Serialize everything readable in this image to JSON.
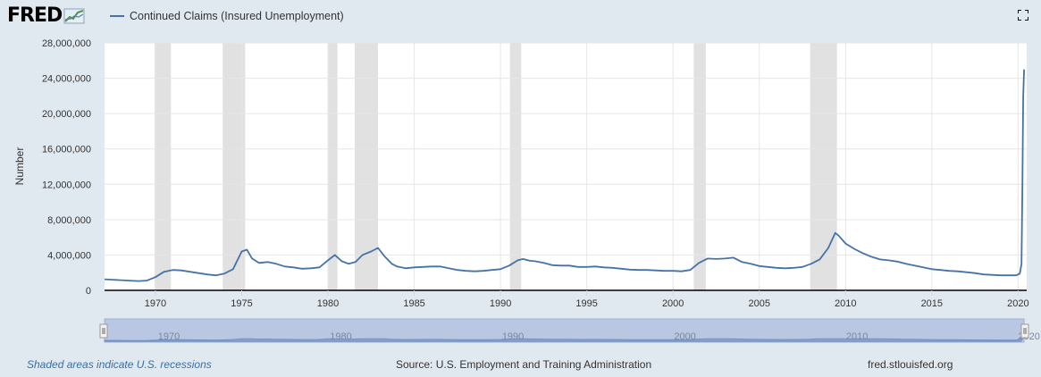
{
  "header": {
    "logo_text": "FRED",
    "legend_label": "Continued Claims (Insured Unemployment)",
    "series_color": "#4572a7",
    "fullscreen_icon": "fullscreen-icon"
  },
  "footer": {
    "recession_note": "Shaded areas indicate U.S. recessions",
    "source": "Source: U.S. Employment and Training Administration",
    "site": "fred.stlouisfed.org"
  },
  "chart_data": {
    "type": "line",
    "ylabel": "Number",
    "ylim": [
      0,
      28000000
    ],
    "yticks": [
      0,
      4000000,
      8000000,
      12000000,
      16000000,
      20000000,
      24000000,
      28000000
    ],
    "ytick_labels": [
      "0",
      "4,000,000",
      "8,000,000",
      "12,000,000",
      "16,000,000",
      "20,000,000",
      "24,000,000",
      "28,000,000"
    ],
    "xlim": [
      1967.05,
      2020.5
    ],
    "xticks": [
      1970,
      1975,
      1980,
      1985,
      1990,
      1995,
      2000,
      2005,
      2010,
      2015,
      2020
    ],
    "xtick_labels": [
      "1970",
      "1975",
      "1980",
      "1985",
      "1990",
      "1995",
      "2000",
      "2005",
      "2010",
      "2015",
      "2020"
    ],
    "navigator_labels": [
      "1970",
      "1980",
      "1990",
      "2000",
      "2010",
      "2020"
    ],
    "grid": true,
    "recessions": [
      [
        1969.95,
        1970.9
      ],
      [
        1973.9,
        1975.2
      ],
      [
        1980.0,
        1980.55
      ],
      [
        1981.55,
        1982.9
      ],
      [
        1990.55,
        1991.2
      ],
      [
        2001.2,
        2001.9
      ],
      [
        2007.95,
        2009.5
      ]
    ],
    "series": [
      {
        "name": "Continued Claims (Insured Unemployment)",
        "x": [
          1967.05,
          1967.5,
          1968.0,
          1968.5,
          1969.0,
          1969.5,
          1970.0,
          1970.5,
          1971.0,
          1971.5,
          1972.0,
          1972.5,
          1973.0,
          1973.5,
          1974.0,
          1974.5,
          1975.0,
          1975.3,
          1975.6,
          1976.0,
          1976.5,
          1977.0,
          1977.5,
          1978.0,
          1978.5,
          1979.0,
          1979.5,
          1980.0,
          1980.4,
          1980.8,
          1981.2,
          1981.6,
          1982.0,
          1982.5,
          1982.9,
          1983.3,
          1983.7,
          1984.0,
          1984.5,
          1985.0,
          1985.5,
          1986.0,
          1986.5,
          1987.0,
          1987.5,
          1988.0,
          1988.5,
          1989.0,
          1989.5,
          1990.0,
          1990.5,
          1991.0,
          1991.3,
          1991.7,
          1992.0,
          1992.5,
          1993.0,
          1993.5,
          1994.0,
          1994.5,
          1995.0,
          1995.5,
          1996.0,
          1996.5,
          1997.0,
          1997.5,
          1998.0,
          1998.5,
          1999.0,
          1999.5,
          2000.0,
          2000.5,
          2001.0,
          2001.5,
          2002.0,
          2002.5,
          2003.0,
          2003.5,
          2004.0,
          2004.5,
          2005.0,
          2005.5,
          2006.0,
          2006.5,
          2007.0,
          2007.5,
          2008.0,
          2008.5,
          2009.0,
          2009.4,
          2009.6,
          2010.0,
          2010.5,
          2011.0,
          2011.5,
          2012.0,
          2012.5,
          2013.0,
          2013.5,
          2014.0,
          2014.5,
          2015.0,
          2015.5,
          2016.0,
          2016.5,
          2017.0,
          2017.5,
          2018.0,
          2018.5,
          2019.0,
          2019.5,
          2019.9,
          2020.1,
          2020.2,
          2020.25,
          2020.3,
          2020.35
        ],
        "values": [
          1250000,
          1200000,
          1150000,
          1100000,
          1050000,
          1100000,
          1500000,
          2100000,
          2300000,
          2250000,
          2100000,
          1950000,
          1800000,
          1700000,
          1900000,
          2400000,
          4400000,
          4600000,
          3600000,
          3100000,
          3200000,
          3000000,
          2700000,
          2600000,
          2450000,
          2500000,
          2600000,
          3400000,
          4000000,
          3300000,
          3000000,
          3200000,
          4000000,
          4400000,
          4800000,
          3800000,
          3000000,
          2700000,
          2500000,
          2600000,
          2650000,
          2700000,
          2700000,
          2500000,
          2300000,
          2200000,
          2150000,
          2200000,
          2300000,
          2400000,
          2800000,
          3400000,
          3550000,
          3350000,
          3300000,
          3100000,
          2850000,
          2800000,
          2800000,
          2650000,
          2650000,
          2700000,
          2600000,
          2550000,
          2450000,
          2350000,
          2300000,
          2300000,
          2250000,
          2200000,
          2200000,
          2150000,
          2300000,
          3100000,
          3600000,
          3550000,
          3600000,
          3700000,
          3200000,
          3000000,
          2750000,
          2650000,
          2550000,
          2500000,
          2550000,
          2650000,
          3000000,
          3500000,
          4800000,
          6500000,
          6200000,
          5300000,
          4700000,
          4200000,
          3800000,
          3500000,
          3400000,
          3250000,
          3000000,
          2800000,
          2600000,
          2400000,
          2300000,
          2200000,
          2150000,
          2050000,
          1950000,
          1800000,
          1750000,
          1700000,
          1700000,
          1700000,
          1900000,
          3000000,
          12000000,
          22000000,
          25000000
        ]
      }
    ]
  }
}
